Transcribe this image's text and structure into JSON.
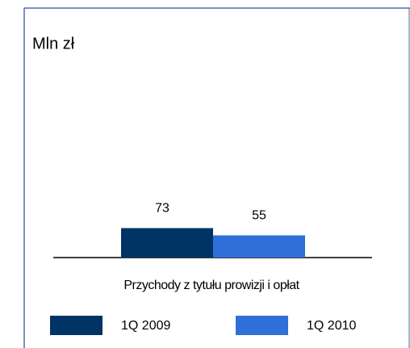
{
  "chart_data": {
    "type": "bar",
    "title": "Mln zł",
    "categories": [
      "Przychody z tytułu prowizji i opłat"
    ],
    "series": [
      {
        "name": "1Q 2009",
        "color": "#003366",
        "values": [
          73
        ]
      },
      {
        "name": "1Q 2010",
        "color": "#2e6fd8",
        "values": [
          55
        ]
      }
    ]
  }
}
